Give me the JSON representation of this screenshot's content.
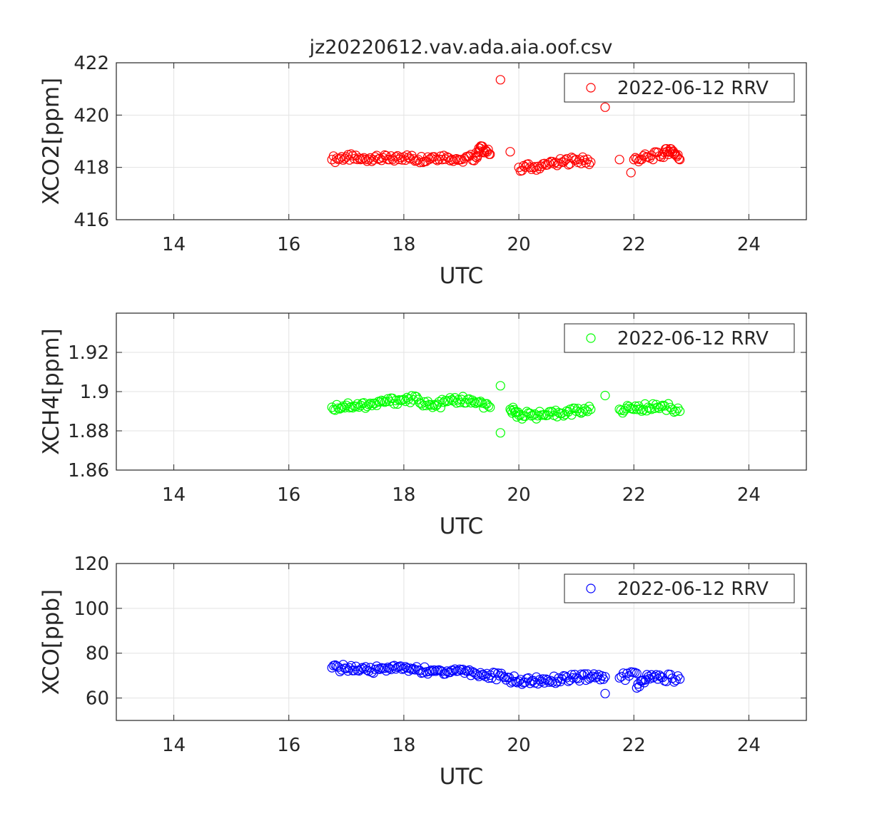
{
  "figure_title": "jz20220612.vav.ada.aia.oof.csv",
  "chart_data": [
    {
      "type": "scatter",
      "xlabel": "UTC",
      "ylabel": "XCO2[ppm]",
      "xlim": [
        13,
        25
      ],
      "ylim": [
        416,
        422
      ],
      "xticks": [
        14,
        16,
        18,
        20,
        22,
        24
      ],
      "yticks": [
        416,
        418,
        420,
        422
      ],
      "ytick_labels": [
        "416",
        "418",
        "420",
        "422"
      ],
      "grid": true,
      "legend_position": "top-right",
      "series": [
        {
          "name": "2022-06-12 RRV",
          "color": "#ff0000",
          "marker": "circle-open",
          "x": [
            16.75,
            17.0,
            17.25,
            17.5,
            17.75,
            18.0,
            18.25,
            18.5,
            18.75,
            19.0,
            19.25,
            19.35,
            19.5,
            19.68,
            19.85,
            20.0,
            20.25,
            20.5,
            20.75,
            21.0,
            21.25,
            21.5,
            21.75,
            21.95,
            22.0,
            22.25,
            22.5,
            22.65,
            22.8
          ],
          "y": [
            418.3,
            418.4,
            418.3,
            418.4,
            418.3,
            418.4,
            418.3,
            418.4,
            418.4,
            418.3,
            418.4,
            418.8,
            418.5,
            421.35,
            418.6,
            418.0,
            418.0,
            418.1,
            418.2,
            418.3,
            418.2,
            420.3,
            418.3,
            417.8,
            418.3,
            418.4,
            418.5,
            418.7,
            418.3
          ]
        }
      ]
    },
    {
      "type": "scatter",
      "xlabel": "UTC",
      "ylabel": "XCH4[ppm]",
      "xlim": [
        13,
        25
      ],
      "ylim": [
        1.86,
        1.94
      ],
      "xticks": [
        14,
        16,
        18,
        20,
        22,
        24
      ],
      "yticks": [
        1.86,
        1.88,
        1.9,
        1.92
      ],
      "ytick_labels": [
        "1.86",
        "1.88",
        "1.9",
        "1.92"
      ],
      "grid": true,
      "legend_position": "top-right",
      "series": [
        {
          "name": "2022-06-12 RRV",
          "color": "#00ff00",
          "marker": "circle-open",
          "x": [
            16.75,
            17.0,
            17.25,
            17.5,
            17.75,
            18.0,
            18.25,
            18.5,
            18.75,
            19.0,
            19.25,
            19.5,
            19.68,
            19.68,
            19.85,
            20.0,
            20.25,
            20.5,
            20.75,
            21.0,
            21.25,
            21.5,
            21.75,
            22.0,
            22.25,
            22.5,
            22.8
          ],
          "y": [
            1.892,
            1.893,
            1.893,
            1.894,
            1.895,
            1.896,
            1.896,
            1.892,
            1.895,
            1.896,
            1.894,
            1.892,
            1.903,
            1.879,
            1.891,
            1.888,
            1.888,
            1.888,
            1.889,
            1.89,
            1.891,
            1.898,
            1.891,
            1.891,
            1.892,
            1.893,
            1.89
          ]
        }
      ]
    },
    {
      "type": "scatter",
      "xlabel": "UTC",
      "ylabel": "XCO[ppb]",
      "xlim": [
        13,
        25
      ],
      "ylim": [
        50,
        120
      ],
      "xticks": [
        14,
        16,
        18,
        20,
        22,
        24
      ],
      "yticks": [
        60,
        80,
        100,
        120
      ],
      "ytick_labels": [
        "60",
        "80",
        "100",
        "120"
      ],
      "grid": true,
      "legend_position": "top-right",
      "series": [
        {
          "name": "2022-06-12 RRV",
          "color": "#0000ff",
          "marker": "circle-open",
          "x": [
            16.75,
            17.0,
            17.25,
            17.5,
            17.75,
            18.0,
            18.25,
            18.5,
            18.75,
            19.0,
            19.25,
            19.5,
            19.75,
            20.0,
            20.25,
            20.5,
            20.75,
            21.0,
            21.25,
            21.5,
            21.5,
            21.75,
            22.05,
            22.05,
            22.25,
            22.5,
            22.8
          ],
          "y": [
            73.5,
            73.2,
            72.8,
            72.8,
            73.2,
            73.2,
            72.5,
            72.0,
            72.0,
            72.5,
            70.8,
            70.2,
            69.2,
            67.5,
            67.8,
            68.0,
            68.5,
            69.0,
            69.2,
            69.5,
            62.0,
            69.0,
            71.0,
            64.5,
            69.5,
            69.2,
            68.5
          ]
        }
      ]
    }
  ]
}
